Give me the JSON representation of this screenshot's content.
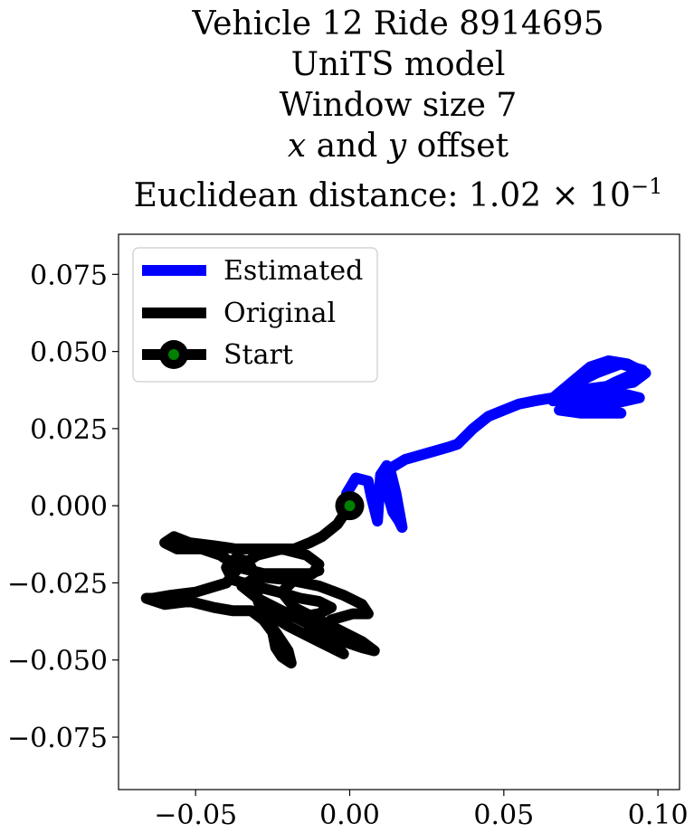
{
  "title": {
    "line1": "Vehicle 12 Ride 8914695",
    "line2": "UniTS model",
    "line3": "Window size 7",
    "line4_var1": "x",
    "line4_and": " and ",
    "line4_var2": "y",
    "line4_rest": " offset",
    "line5_prefix": "Euclidean distance: 1.02 × 10",
    "line5_exp": "−1"
  },
  "chart_data": {
    "type": "line",
    "xlim": [
      -0.075,
      0.107
    ],
    "ylim": [
      -0.092,
      0.088
    ],
    "xticks": [
      -0.05,
      0.0,
      0.05,
      0.1
    ],
    "xtick_labels": [
      "−0.05",
      "0.00",
      "0.05",
      "0.10"
    ],
    "yticks": [
      0.075,
      0.05,
      0.025,
      0.0,
      -0.025,
      -0.05,
      -0.075
    ],
    "ytick_labels": [
      "0.075",
      "0.050",
      "0.025",
      "0.000",
      "−0.025",
      "−0.050",
      "−0.075"
    ],
    "grid": false,
    "legend_position": "top-left",
    "series": [
      {
        "name": "Estimated",
        "color": "#0000ff",
        "points": [
          [
            0,
            0
          ],
          [
            -0.001,
            0.004
          ],
          [
            0.002,
            0.009
          ],
          [
            0.006,
            0.008
          ],
          [
            0.007,
            0.003
          ],
          [
            0.009,
            -0.005
          ],
          [
            0.01,
            0.01
          ],
          [
            0.012,
            0.013
          ],
          [
            0.012,
            0.005
          ],
          [
            0.014,
            -0.002
          ],
          [
            0.016,
            -0.005
          ],
          [
            0.017,
            -0.007
          ],
          [
            0.015,
            0.004
          ],
          [
            0.013,
            0.012
          ],
          [
            0.018,
            0.015
          ],
          [
            0.025,
            0.017
          ],
          [
            0.032,
            0.019
          ],
          [
            0.035,
            0.02
          ],
          [
            0.04,
            0.025
          ],
          [
            0.045,
            0.029
          ],
          [
            0.05,
            0.031
          ],
          [
            0.055,
            0.033
          ],
          [
            0.06,
            0.034
          ],
          [
            0.066,
            0.035
          ],
          [
            0.072,
            0.04
          ],
          [
            0.078,
            0.045
          ],
          [
            0.084,
            0.047
          ],
          [
            0.09,
            0.046
          ],
          [
            0.096,
            0.043
          ],
          [
            0.092,
            0.04
          ],
          [
            0.086,
            0.039
          ],
          [
            0.078,
            0.038
          ],
          [
            0.07,
            0.037
          ],
          [
            0.066,
            0.034
          ],
          [
            0.074,
            0.035
          ],
          [
            0.082,
            0.036
          ],
          [
            0.09,
            0.036
          ],
          [
            0.094,
            0.035
          ],
          [
            0.085,
            0.033
          ],
          [
            0.075,
            0.032
          ],
          [
            0.068,
            0.031
          ],
          [
            0.075,
            0.03
          ],
          [
            0.088,
            0.03
          ],
          [
            0.08,
            0.031
          ],
          [
            0.07,
            0.032
          ],
          [
            0.076,
            0.035
          ],
          [
            0.086,
            0.04
          ],
          [
            0.095,
            0.044
          ],
          [
            0.088,
            0.046
          ],
          [
            0.08,
            0.043
          ],
          [
            0.072,
            0.039
          ],
          [
            0.078,
            0.037
          ],
          [
            0.088,
            0.038
          ]
        ]
      },
      {
        "name": "Original",
        "color": "#000000",
        "points": [
          [
            0,
            0
          ],
          [
            -0.004,
            -0.006
          ],
          [
            -0.009,
            -0.01
          ],
          [
            -0.013,
            -0.012
          ],
          [
            -0.018,
            -0.014
          ],
          [
            -0.024,
            -0.014
          ],
          [
            -0.03,
            -0.014
          ],
          [
            -0.037,
            -0.014
          ],
          [
            -0.044,
            -0.013
          ],
          [
            -0.052,
            -0.012
          ],
          [
            -0.057,
            -0.01
          ],
          [
            -0.06,
            -0.012
          ],
          [
            -0.056,
            -0.014
          ],
          [
            -0.048,
            -0.014
          ],
          [
            -0.042,
            -0.016
          ],
          [
            -0.036,
            -0.02
          ],
          [
            -0.028,
            -0.022
          ],
          [
            -0.02,
            -0.022
          ],
          [
            -0.012,
            -0.022
          ],
          [
            -0.01,
            -0.019
          ],
          [
            -0.014,
            -0.016
          ],
          [
            -0.022,
            -0.014
          ],
          [
            -0.03,
            -0.016
          ],
          [
            -0.036,
            -0.02
          ],
          [
            -0.04,
            -0.025
          ],
          [
            -0.05,
            -0.028
          ],
          [
            -0.058,
            -0.029
          ],
          [
            -0.064,
            -0.03
          ],
          [
            -0.066,
            -0.03
          ],
          [
            -0.06,
            -0.032
          ],
          [
            -0.052,
            -0.031
          ],
          [
            -0.044,
            -0.033
          ],
          [
            -0.038,
            -0.034
          ],
          [
            -0.032,
            -0.034
          ],
          [
            -0.028,
            -0.037
          ],
          [
            -0.025,
            -0.041
          ],
          [
            -0.024,
            -0.046
          ],
          [
            -0.022,
            -0.049
          ],
          [
            -0.019,
            -0.051
          ],
          [
            -0.02,
            -0.047
          ],
          [
            -0.024,
            -0.041
          ],
          [
            -0.028,
            -0.036
          ],
          [
            -0.03,
            -0.03
          ],
          [
            -0.03,
            -0.024
          ],
          [
            -0.033,
            -0.018
          ],
          [
            -0.037,
            -0.017
          ],
          [
            -0.04,
            -0.02
          ],
          [
            -0.038,
            -0.024
          ],
          [
            -0.031,
            -0.026
          ],
          [
            -0.023,
            -0.028
          ],
          [
            -0.016,
            -0.03
          ],
          [
            -0.01,
            -0.031
          ],
          [
            -0.006,
            -0.033
          ],
          [
            -0.01,
            -0.035
          ],
          [
            -0.016,
            -0.036
          ],
          [
            -0.022,
            -0.036
          ],
          [
            -0.028,
            -0.034
          ],
          [
            -0.02,
            -0.039
          ],
          [
            -0.012,
            -0.043
          ],
          [
            -0.006,
            -0.046
          ],
          [
            -0.002,
            -0.048
          ],
          [
            -0.006,
            -0.044
          ],
          [
            -0.014,
            -0.038
          ],
          [
            -0.022,
            -0.034
          ],
          [
            -0.03,
            -0.03
          ],
          [
            -0.035,
            -0.026
          ],
          [
            -0.03,
            -0.023
          ],
          [
            -0.02,
            -0.024
          ],
          [
            -0.01,
            -0.026
          ],
          [
            -0.002,
            -0.029
          ],
          [
            0.004,
            -0.032
          ],
          [
            0.006,
            -0.035
          ],
          [
            0.001,
            -0.035
          ],
          [
            -0.006,
            -0.037
          ],
          [
            -0.01,
            -0.04
          ],
          [
            -0.005,
            -0.043
          ],
          [
            0.004,
            -0.046
          ],
          [
            0.008,
            -0.047
          ],
          [
            0.004,
            -0.044
          ],
          [
            -0.004,
            -0.04
          ],
          [
            -0.012,
            -0.036
          ],
          [
            -0.018,
            -0.033
          ],
          [
            -0.022,
            -0.028
          ],
          [
            -0.018,
            -0.024
          ],
          [
            -0.01,
            -0.021
          ]
        ]
      },
      {
        "name": "Start",
        "color": "#000000",
        "marker_fill": "#008000",
        "points": [
          [
            0,
            0
          ]
        ]
      }
    ]
  }
}
